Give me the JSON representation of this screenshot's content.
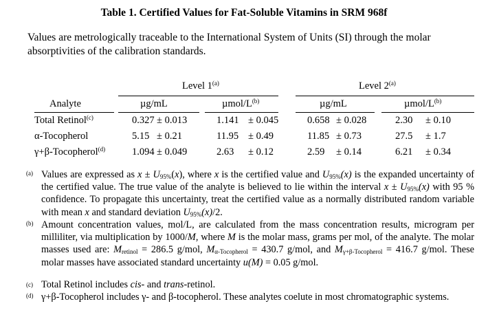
{
  "title": "Table 1.  Certified Values for Fat-Soluble Vitamins in SRM 968f",
  "subtitle": "Values are metrologically traceable to the International System of Units (SI) through the molar absorptivities of the calibration standards.",
  "sym": {
    "x": "x",
    "U": "U",
    "s95": "95%",
    "pm": " ± ",
    "M": "M",
    "u": "u"
  },
  "table": {
    "level1": "Level 1",
    "level2": "Level 2",
    "level_note": "(a)",
    "analyte_header": "Analyte",
    "units": [
      "µg/mL",
      "µmol/L",
      "µg/mL",
      "µmol/L"
    ],
    "umol_note": "(b)",
    "rows": [
      {
        "analyte": "Total Retinol",
        "note": "(c)",
        "cells": [
          [
            "0.327",
            "± 0.013"
          ],
          [
            "1.141",
            "± 0.045"
          ],
          [
            "0.658",
            "± 0.028"
          ],
          [
            "2.30",
            "± 0.10"
          ]
        ]
      },
      {
        "analyte": "α-Tocopherol",
        "note": "",
        "cells": [
          [
            "5.15",
            "± 0.21"
          ],
          [
            "11.95",
            "± 0.49"
          ],
          [
            "11.85",
            "± 0.73"
          ],
          [
            "27.5",
            "± 1.7"
          ]
        ]
      },
      {
        "analyte": "γ+β-Tocopherol",
        "note": "(d)",
        "cells": [
          [
            "1.094",
            "± 0.049"
          ],
          [
            "2.63",
            "± 0.12"
          ],
          [
            "2.59",
            "± 0.14"
          ],
          [
            "6.21",
            "± 0.34"
          ]
        ]
      }
    ]
  },
  "footnotes": {
    "a": {
      "label": "(a)",
      "t1": "Values are expressed as ",
      "t2": "(",
      "t3": "), where ",
      "t4": " is the certified value and ",
      "t5": " is the expanded uncertainty of the certified value.  The true value of the analyte is believed to lie within the interval ",
      "t6": " with 95 % confidence.  To propagate this uncertainty, treat the certified value as a normally distributed random variable with mean ",
      "t7": " and standard deviation ",
      "t8": "/2.",
      "ux": "(x)"
    },
    "b": {
      "label": "(b)",
      "t1": "Amount concentration values, mol/L, are calculated from the mass concentration results, microgram per milliliter, via multiplication by 1000/",
      "t2": ", where ",
      "t3": " is the molar mass, grams per mol, of the analyte.  The molar masses used are: ",
      "sub1": "retinol",
      "v1": " = 286.5 g/mol, ",
      "sub2": "α-Tocopherol",
      "v2": " = 430.7 g/mol, and ",
      "sub3": "γ+β-Tocopherol",
      "v3": " = 416.7 g/mol.  These molar masses have associated standard uncertainty ",
      "um": "(M)",
      "v4": " = 0.05 g/mol."
    },
    "c": {
      "label": "(c)",
      "t1": "Total Retinol includes ",
      "cis": "cis",
      "t2": "- and ",
      "trans": "trans",
      "t3": "-retinol."
    },
    "d": {
      "label": "(d)",
      "t1": "γ+β-Tocopherol includes γ- and β-tocopherol.  These analytes coelute in most chromatographic systems."
    }
  }
}
